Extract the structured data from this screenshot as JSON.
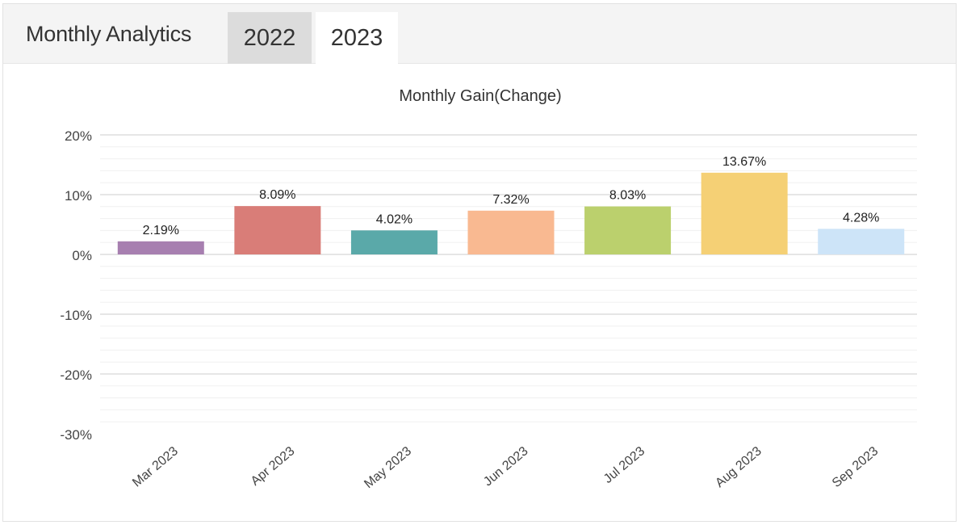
{
  "header": {
    "title": "Monthly Analytics",
    "tabs": [
      {
        "label": "2022",
        "active": false
      },
      {
        "label": "2023",
        "active": true
      }
    ]
  },
  "chart_data": {
    "type": "bar",
    "title": "Monthly Gain(Change)",
    "categories": [
      "Mar 2023",
      "Apr 2023",
      "May 2023",
      "Jun 2023",
      "Jul 2023",
      "Aug 2023",
      "Sep 2023"
    ],
    "values": [
      2.19,
      8.09,
      4.02,
      7.32,
      8.03,
      13.67,
      4.28
    ],
    "value_labels": [
      "2.19%",
      "8.09%",
      "4.02%",
      "7.32%",
      "8.03%",
      "13.67%",
      "4.28%"
    ],
    "colors": [
      "#a77fb0",
      "#d97d78",
      "#5aa9a9",
      "#f9b991",
      "#bbd06d",
      "#f5d075",
      "#cde4f8"
    ],
    "yticks": [
      20,
      10,
      0,
      -10,
      -20,
      -30
    ],
    "ytick_labels": [
      "20%",
      "10%",
      "0%",
      "-10%",
      "-20%",
      "-30%"
    ],
    "ylim": [
      -30,
      20
    ],
    "grid": true,
    "legend": "none"
  }
}
